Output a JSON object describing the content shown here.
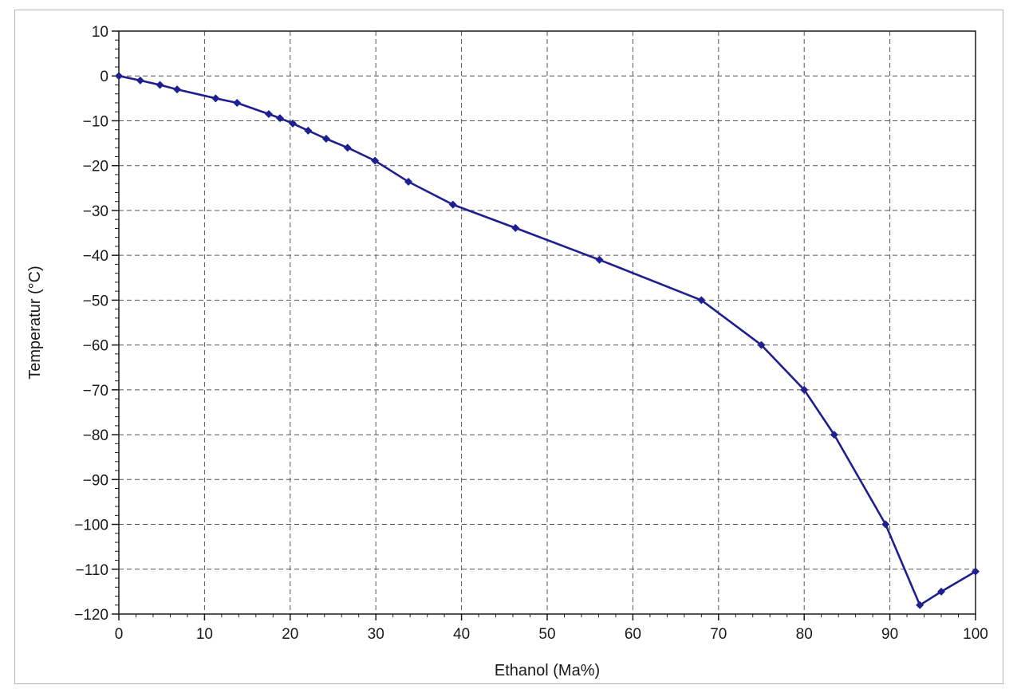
{
  "chart_data": {
    "type": "line",
    "title": "",
    "xlabel": "Ethanol (Ma%)",
    "ylabel": "Temperatur (°C)",
    "xlim": [
      0,
      100
    ],
    "ylim": [
      -120,
      10
    ],
    "x_ticks": [
      0,
      10,
      20,
      30,
      40,
      50,
      60,
      70,
      80,
      90,
      100
    ],
    "y_ticks": [
      10,
      0,
      -10,
      -20,
      -30,
      -40,
      -50,
      -60,
      -70,
      -80,
      -90,
      -100,
      -110,
      -120
    ],
    "grid": true,
    "line_color": "#1f1f8f",
    "series": [
      {
        "x": [
          0,
          2.5,
          4.8,
          6.8,
          11.3,
          13.8,
          17.5,
          18.8,
          20.3,
          22.1,
          24.2,
          26.7,
          29.9,
          33.8,
          39.0,
          46.3,
          56.1,
          68.0,
          75.0,
          80.0,
          83.5,
          89.5,
          93.5,
          96.0,
          100.0
        ],
        "y": [
          0,
          -1,
          -2,
          -3,
          -5,
          -6,
          -8.5,
          -9.4,
          -10.6,
          -12.2,
          -14,
          -16,
          -18.9,
          -23.6,
          -28.7,
          -33.9,
          -41,
          -50,
          -60,
          -70,
          -80,
          -100,
          -118,
          -115,
          -110.5
        ]
      }
    ]
  }
}
